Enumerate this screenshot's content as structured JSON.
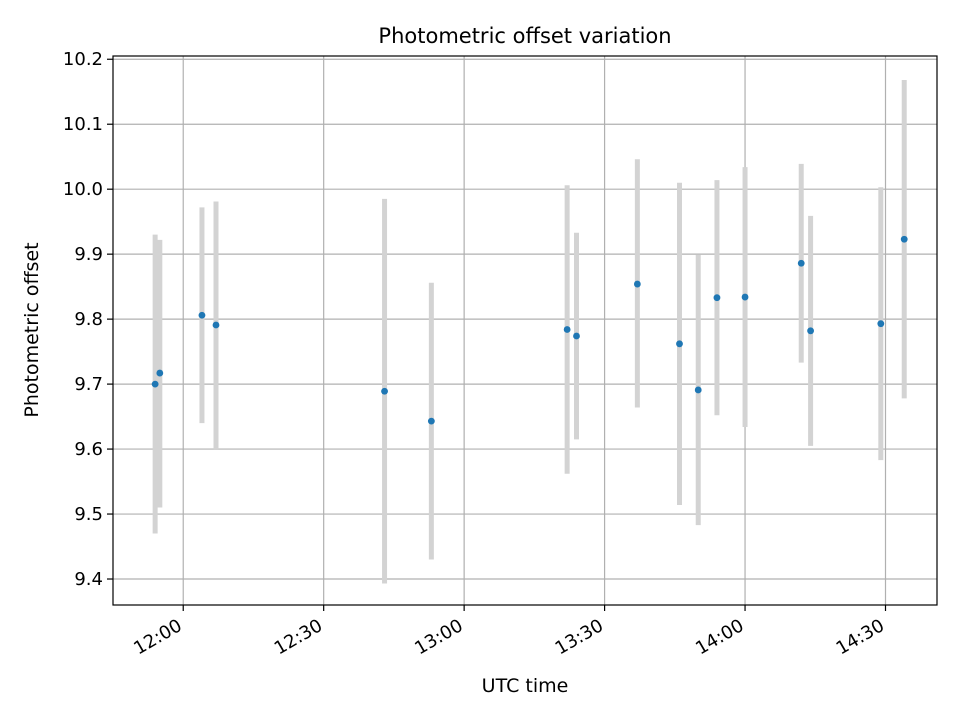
{
  "chart_data": {
    "type": "scatter",
    "title": "Photometric offset variation",
    "xlabel": "UTC time",
    "ylabel": "Photometric offset",
    "x_is_time": true,
    "xlim": [
      "11:45",
      "14:41"
    ],
    "ylim": [
      9.36,
      10.205
    ],
    "x_ticks": [
      "12:00",
      "12:30",
      "13:00",
      "13:30",
      "14:00",
      "14:30"
    ],
    "y_ticks": [
      "9.4",
      "9.5",
      "9.6",
      "9.7",
      "9.8",
      "9.9",
      "10.0",
      "10.1",
      "10.2"
    ],
    "grid": true,
    "legend": "none",
    "marker_color": "#1f77b4",
    "errorbar_color": "#d3d3d3",
    "points": [
      {
        "x": "11:54",
        "y": 9.7,
        "y_low": 9.47,
        "y_high": 9.93
      },
      {
        "x": "11:55",
        "y": 9.717,
        "y_low": 9.51,
        "y_high": 9.922
      },
      {
        "x": "12:04",
        "y": 9.806,
        "y_low": 9.64,
        "y_high": 9.972
      },
      {
        "x": "12:07",
        "y": 9.791,
        "y_low": 9.6,
        "y_high": 9.981
      },
      {
        "x": "12:43",
        "y": 9.689,
        "y_low": 9.393,
        "y_high": 9.985
      },
      {
        "x": "12:53",
        "y": 9.643,
        "y_low": 9.43,
        "y_high": 9.856
      },
      {
        "x": "13:22",
        "y": 9.784,
        "y_low": 9.562,
        "y_high": 10.006
      },
      {
        "x": "13:24",
        "y": 9.774,
        "y_low": 9.615,
        "y_high": 9.933
      },
      {
        "x": "13:37",
        "y": 9.854,
        "y_low": 9.664,
        "y_high": 10.046
      },
      {
        "x": "13:46",
        "y": 9.762,
        "y_low": 9.514,
        "y_high": 10.01
      },
      {
        "x": "13:50",
        "y": 9.691,
        "y_low": 9.483,
        "y_high": 9.899
      },
      {
        "x": "13:54",
        "y": 9.833,
        "y_low": 9.652,
        "y_high": 10.014
      },
      {
        "x": "14:00",
        "y": 9.834,
        "y_low": 9.634,
        "y_high": 10.034
      },
      {
        "x": "14:12",
        "y": 9.886,
        "y_low": 9.733,
        "y_high": 10.039
      },
      {
        "x": "14:14",
        "y": 9.782,
        "y_low": 9.605,
        "y_high": 9.959
      },
      {
        "x": "14:29",
        "y": 9.793,
        "y_low": 9.583,
        "y_high": 10.003
      },
      {
        "x": "14:34",
        "y": 9.923,
        "y_low": 9.678,
        "y_high": 10.168
      }
    ]
  }
}
